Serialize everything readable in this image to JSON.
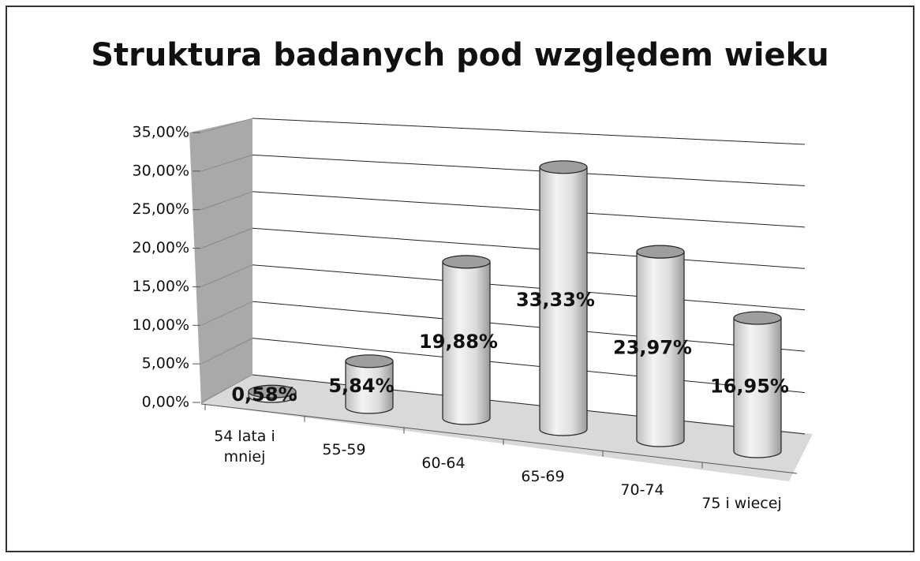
{
  "chart_data": {
    "type": "bar3d",
    "title": "Struktura badanych pod względem wieku",
    "categories": [
      "54 lata i mniej",
      "55-59",
      "60-64",
      "65-69",
      "70-74",
      "75 i wiecej"
    ],
    "values": [
      0.58,
      5.84,
      19.88,
      33.33,
      23.97,
      16.95
    ],
    "value_labels": [
      "0,58%",
      "5,84%",
      "19,88%",
      "33,33%",
      "23,97%",
      "16,95%"
    ],
    "ylim": [
      0,
      35
    ],
    "yticks": [
      {
        "value": 0,
        "label": "0,00%"
      },
      {
        "value": 5,
        "label": "5,00%"
      },
      {
        "value": 10,
        "label": "10,00%"
      },
      {
        "value": 15,
        "label": "15,00%"
      },
      {
        "value": 20,
        "label": "20,00%"
      },
      {
        "value": 25,
        "label": "25,00%"
      },
      {
        "value": 30,
        "label": "30,00%"
      },
      {
        "value": 35,
        "label": "35,00%"
      }
    ],
    "grid": true,
    "color": "#e8e8e8"
  }
}
